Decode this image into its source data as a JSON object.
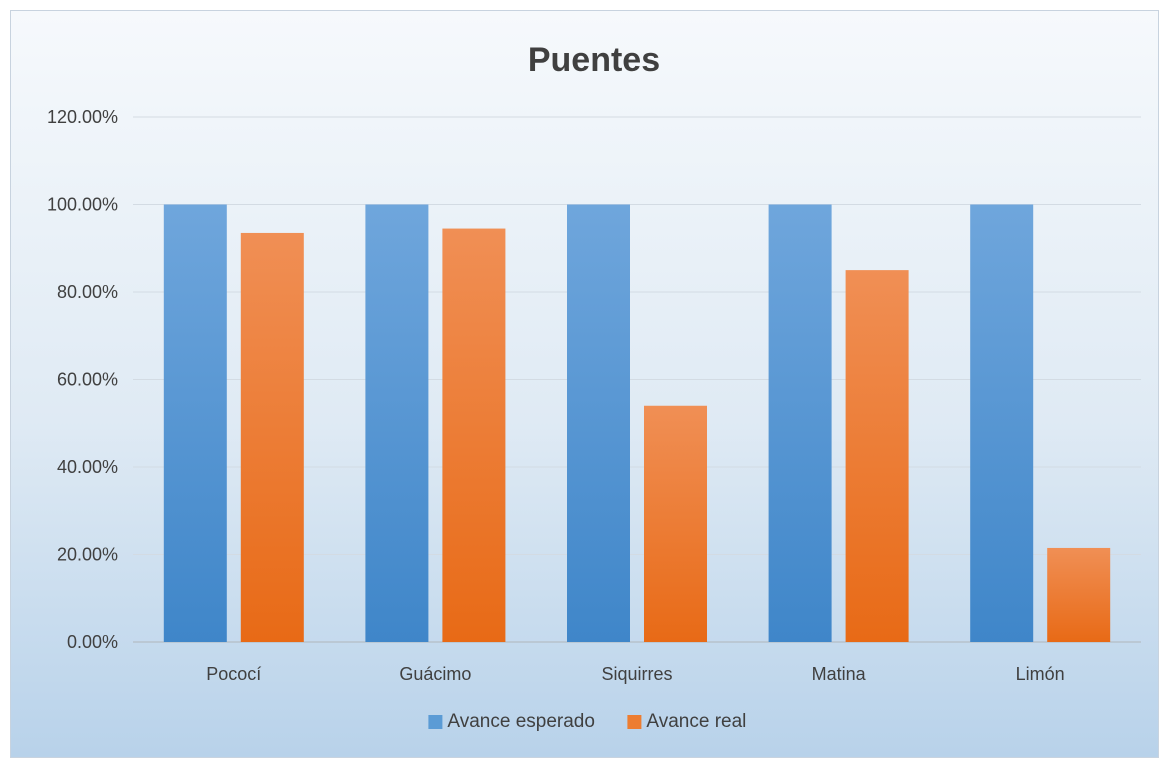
{
  "chart_data": {
    "type": "bar",
    "title": "Puentes",
    "xlabel": "",
    "ylabel": "",
    "categories": [
      "Pococí",
      "Guácimo",
      "Siquirres",
      "Matina",
      "Limón"
    ],
    "series": [
      {
        "name": "Avance esperado",
        "values": [
          100,
          100,
          100,
          100,
          100
        ],
        "color": "#5b9bd5"
      },
      {
        "name": "Avance real",
        "values": [
          93.5,
          94.5,
          54.0,
          85.0,
          21.5
        ],
        "color": "#ed7d31"
      }
    ],
    "ylim": [
      0,
      120
    ],
    "yticks": [
      "0.00%",
      "20.00%",
      "40.00%",
      "60.00%",
      "80.00%",
      "100.00%",
      "120.00%"
    ],
    "grid": true,
    "legend_position": "bottom"
  }
}
